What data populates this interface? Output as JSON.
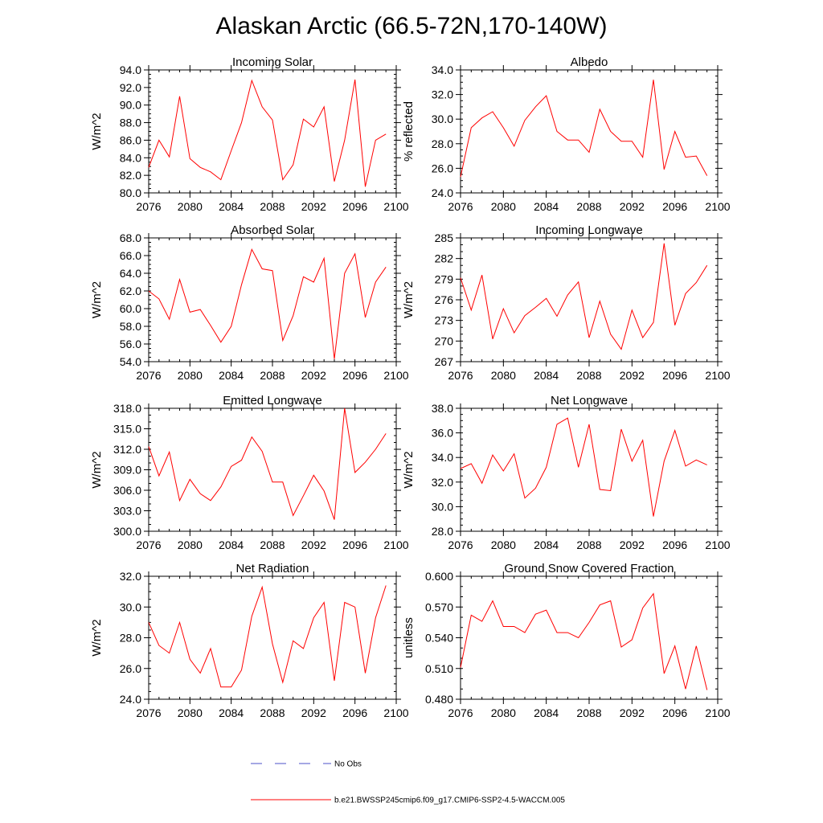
{
  "title": "Alaskan Arctic (66.5-72N,170-140W)",
  "colors": {
    "series": "#ff0000",
    "obs": "#4b50c8",
    "axis": "#000000"
  },
  "legend": {
    "obs_label": "No Obs",
    "model_label": "b.e21.BWSSP245cmip6.f09_g17.CMIP6-SSP2-4.5-WACCM.005"
  },
  "chart_data": [
    {
      "type": "line",
      "title": "Incoming Solar",
      "xlabel": "",
      "ylabel": "W/m^2",
      "xlim": [
        2076,
        2100
      ],
      "ylim": [
        80,
        94
      ],
      "x_ticks": [
        2076,
        2080,
        2084,
        2088,
        2092,
        2096,
        2100
      ],
      "x_tick_labels": [
        "2076",
        "2080",
        "2084",
        "2088",
        "2092",
        "2096",
        "2100"
      ],
      "y_ticks": [
        80,
        82,
        84,
        86,
        88,
        90,
        92,
        94
      ],
      "y_tick_labels": [
        "80.0",
        "82.0",
        "84.0",
        "86.0",
        "88.0",
        "90.0",
        "92.0",
        "94.0"
      ],
      "y_minor_step": 0.5,
      "x": [
        2076,
        2077,
        2078,
        2079,
        2080,
        2081,
        2082,
        2083,
        2084,
        2085,
        2086,
        2087,
        2088,
        2089,
        2090,
        2091,
        2092,
        2093,
        2094,
        2095,
        2096,
        2097,
        2098,
        2099
      ],
      "series": [
        {
          "name": "b.e21.BWSSP245cmip6.f09_g17.CMIP6-SSP2-4.5-WACCM.005",
          "values": [
            82.9,
            86.0,
            84.1,
            91.0,
            83.9,
            82.9,
            82.4,
            81.5,
            84.8,
            88.0,
            92.8,
            89.8,
            88.3,
            81.5,
            83.2,
            88.4,
            87.5,
            89.8,
            81.3,
            86.0,
            92.9,
            80.7,
            86.0,
            86.7
          ]
        }
      ]
    },
    {
      "type": "line",
      "title": "Albedo",
      "xlabel": "",
      "ylabel": "% reflected",
      "xlim": [
        2076,
        2100
      ],
      "ylim": [
        24,
        34
      ],
      "x_ticks": [
        2076,
        2080,
        2084,
        2088,
        2092,
        2096,
        2100
      ],
      "x_tick_labels": [
        "2076",
        "2080",
        "2084",
        "2088",
        "2092",
        "2096",
        "2100"
      ],
      "y_ticks": [
        24,
        26,
        28,
        30,
        32,
        34
      ],
      "y_tick_labels": [
        "24.0",
        "26.0",
        "28.0",
        "30.0",
        "32.0",
        "34.0"
      ],
      "y_minor_step": 0.5,
      "x": [
        2076,
        2077,
        2078,
        2079,
        2080,
        2081,
        2082,
        2083,
        2084,
        2085,
        2086,
        2087,
        2088,
        2089,
        2090,
        2091,
        2092,
        2093,
        2094,
        2095,
        2096,
        2097,
        2098,
        2099
      ],
      "series": [
        {
          "name": "b.e21.BWSSP245cmip6.f09_g17.CMIP6-SSP2-4.5-WACCM.005",
          "values": [
            25.3,
            29.3,
            30.1,
            30.6,
            29.3,
            27.8,
            29.9,
            31.0,
            31.9,
            29.0,
            28.3,
            28.3,
            27.3,
            30.8,
            29.0,
            28.2,
            28.2,
            26.9,
            33.2,
            25.9,
            29.0,
            26.9,
            27.0,
            25.4
          ]
        }
      ]
    },
    {
      "type": "line",
      "title": "Absorbed Solar",
      "xlabel": "",
      "ylabel": "W/m^2",
      "xlim": [
        2076,
        2100
      ],
      "ylim": [
        54,
        68
      ],
      "x_ticks": [
        2076,
        2080,
        2084,
        2088,
        2092,
        2096,
        2100
      ],
      "x_tick_labels": [
        "2076",
        "2080",
        "2084",
        "2088",
        "2092",
        "2096",
        "2100"
      ],
      "y_ticks": [
        54,
        56,
        58,
        60,
        62,
        64,
        66,
        68
      ],
      "y_tick_labels": [
        "54.0",
        "56.0",
        "58.0",
        "60.0",
        "62.0",
        "64.0",
        "66.0",
        "68.0"
      ],
      "y_minor_step": 0.5,
      "x": [
        2076,
        2077,
        2078,
        2079,
        2080,
        2081,
        2082,
        2083,
        2084,
        2085,
        2086,
        2087,
        2088,
        2089,
        2090,
        2091,
        2092,
        2093,
        2094,
        2095,
        2096,
        2097,
        2098,
        2099
      ],
      "series": [
        {
          "name": "b.e21.BWSSP245cmip6.f09_g17.CMIP6-SSP2-4.5-WACCM.005",
          "values": [
            62.0,
            61.1,
            58.8,
            63.3,
            59.6,
            59.9,
            58.1,
            56.2,
            58.0,
            62.7,
            66.7,
            64.5,
            64.3,
            56.4,
            59.2,
            63.6,
            63.0,
            65.7,
            54.3,
            64.0,
            66.2,
            59.0,
            63.0,
            64.7
          ]
        }
      ]
    },
    {
      "type": "line",
      "title": "Incoming Longwave",
      "xlabel": "",
      "ylabel": "W/m^2",
      "xlim": [
        2076,
        2100
      ],
      "ylim": [
        267,
        285
      ],
      "x_ticks": [
        2076,
        2080,
        2084,
        2088,
        2092,
        2096,
        2100
      ],
      "x_tick_labels": [
        "2076",
        "2080",
        "2084",
        "2088",
        "2092",
        "2096",
        "2100"
      ],
      "y_ticks": [
        267,
        270,
        273,
        276,
        279,
        282,
        285
      ],
      "y_tick_labels": [
        "267",
        "270",
        "273",
        "276",
        "279",
        "282",
        "285"
      ],
      "y_minor_step": 1,
      "x": [
        2076,
        2077,
        2078,
        2079,
        2080,
        2081,
        2082,
        2083,
        2084,
        2085,
        2086,
        2087,
        2088,
        2089,
        2090,
        2091,
        2092,
        2093,
        2094,
        2095,
        2096,
        2097,
        2098,
        2099
      ],
      "series": [
        {
          "name": "b.e21.BWSSP245cmip6.f09_g17.CMIP6-SSP2-4.5-WACCM.005",
          "values": [
            279.2,
            274.5,
            279.6,
            270.3,
            274.7,
            271.2,
            273.7,
            274.9,
            276.2,
            273.6,
            276.7,
            278.6,
            270.5,
            275.8,
            271.0,
            268.8,
            274.5,
            270.5,
            272.7,
            284.2,
            272.3,
            276.9,
            278.5,
            281.0
          ]
        }
      ]
    },
    {
      "type": "line",
      "title": "Emitted Longwave",
      "xlabel": "",
      "ylabel": "W/m^2",
      "xlim": [
        2076,
        2100
      ],
      "ylim": [
        300,
        318
      ],
      "x_ticks": [
        2076,
        2080,
        2084,
        2088,
        2092,
        2096,
        2100
      ],
      "x_tick_labels": [
        "2076",
        "2080",
        "2084",
        "2088",
        "2092",
        "2096",
        "2100"
      ],
      "y_ticks": [
        300,
        303,
        306,
        309,
        312,
        315,
        318
      ],
      "y_tick_labels": [
        "300.0",
        "303.0",
        "306.0",
        "309.0",
        "312.0",
        "315.0",
        "318.0"
      ],
      "y_minor_step": 1,
      "x": [
        2076,
        2077,
        2078,
        2079,
        2080,
        2081,
        2082,
        2083,
        2084,
        2085,
        2086,
        2087,
        2088,
        2089,
        2090,
        2091,
        2092,
        2093,
        2094,
        2095,
        2096,
        2097,
        2098,
        2099
      ],
      "series": [
        {
          "name": "b.e21.BWSSP245cmip6.f09_g17.CMIP6-SSP2-4.5-WACCM.005",
          "values": [
            312.4,
            308.1,
            311.6,
            304.5,
            307.6,
            305.5,
            304.5,
            306.5,
            309.5,
            310.4,
            313.8,
            311.7,
            307.2,
            307.2,
            302.3,
            305.2,
            308.2,
            305.9,
            301.7,
            318.0,
            308.6,
            310.1,
            312.0,
            314.3
          ]
        }
      ]
    },
    {
      "type": "line",
      "title": "Net Longwave",
      "xlabel": "",
      "ylabel": "W/m^2",
      "xlim": [
        2076,
        2100
      ],
      "ylim": [
        28,
        38
      ],
      "x_ticks": [
        2076,
        2080,
        2084,
        2088,
        2092,
        2096,
        2100
      ],
      "x_tick_labels": [
        "2076",
        "2080",
        "2084",
        "2088",
        "2092",
        "2096",
        "2100"
      ],
      "y_ticks": [
        28,
        30,
        32,
        34,
        36,
        38
      ],
      "y_tick_labels": [
        "28.0",
        "30.0",
        "32.0",
        "34.0",
        "36.0",
        "38.0"
      ],
      "y_minor_step": 0.5,
      "x": [
        2076,
        2077,
        2078,
        2079,
        2080,
        2081,
        2082,
        2083,
        2084,
        2085,
        2086,
        2087,
        2088,
        2089,
        2090,
        2091,
        2092,
        2093,
        2094,
        2095,
        2096,
        2097,
        2098,
        2099
      ],
      "series": [
        {
          "name": "b.e21.BWSSP245cmip6.f09_g17.CMIP6-SSP2-4.5-WACCM.005",
          "values": [
            33.1,
            33.5,
            31.9,
            34.2,
            32.9,
            34.3,
            30.7,
            31.5,
            33.2,
            36.7,
            37.2,
            33.2,
            36.7,
            31.4,
            31.3,
            36.3,
            33.7,
            35.4,
            29.2,
            33.7,
            36.2,
            33.3,
            33.8,
            33.4
          ]
        }
      ]
    },
    {
      "type": "line",
      "title": "Net Radiation",
      "xlabel": "",
      "ylabel": "W/m^2",
      "xlim": [
        2076,
        2100
      ],
      "ylim": [
        24,
        32
      ],
      "x_ticks": [
        2076,
        2080,
        2084,
        2088,
        2092,
        2096,
        2100
      ],
      "x_tick_labels": [
        "2076",
        "2080",
        "2084",
        "2088",
        "2092",
        "2096",
        "2100"
      ],
      "y_ticks": [
        24,
        26,
        28,
        30,
        32
      ],
      "y_tick_labels": [
        "24.0",
        "26.0",
        "28.0",
        "30.0",
        "32.0"
      ],
      "y_minor_step": 0.5,
      "x": [
        2076,
        2077,
        2078,
        2079,
        2080,
        2081,
        2082,
        2083,
        2084,
        2085,
        2086,
        2087,
        2088,
        2089,
        2090,
        2091,
        2092,
        2093,
        2094,
        2095,
        2096,
        2097,
        2098,
        2099
      ],
      "series": [
        {
          "name": "b.e21.BWSSP245cmip6.f09_g17.CMIP6-SSP2-4.5-WACCM.005",
          "values": [
            29.0,
            27.5,
            27.0,
            29.0,
            26.6,
            25.7,
            27.3,
            24.8,
            24.8,
            25.9,
            29.4,
            31.3,
            27.6,
            25.1,
            27.8,
            27.3,
            29.3,
            30.3,
            25.2,
            30.3,
            30.0,
            25.7,
            29.3,
            31.4
          ]
        }
      ]
    },
    {
      "type": "line",
      "title": "Ground Snow Covered Fraction",
      "xlabel": "",
      "ylabel": "unitless",
      "xlim": [
        2076,
        2100
      ],
      "ylim": [
        0.48,
        0.6
      ],
      "x_ticks": [
        2076,
        2080,
        2084,
        2088,
        2092,
        2096,
        2100
      ],
      "x_tick_labels": [
        "2076",
        "2080",
        "2084",
        "2088",
        "2092",
        "2096",
        "2100"
      ],
      "y_ticks": [
        0.48,
        0.51,
        0.54,
        0.57,
        0.6
      ],
      "y_tick_labels": [
        "0.480",
        "0.510",
        "0.540",
        "0.570",
        "0.600"
      ],
      "y_minor_step": 0.01,
      "x": [
        2076,
        2077,
        2078,
        2079,
        2080,
        2081,
        2082,
        2083,
        2084,
        2085,
        2086,
        2087,
        2088,
        2089,
        2090,
        2091,
        2092,
        2093,
        2094,
        2095,
        2096,
        2097,
        2098,
        2099
      ],
      "series": [
        {
          "name": "b.e21.BWSSP245cmip6.f09_g17.CMIP6-SSP2-4.5-WACCM.005",
          "values": [
            0.511,
            0.562,
            0.556,
            0.576,
            0.551,
            0.551,
            0.545,
            0.563,
            0.567,
            0.545,
            0.545,
            0.54,
            0.555,
            0.572,
            0.576,
            0.531,
            0.538,
            0.569,
            0.583,
            0.505,
            0.532,
            0.49,
            0.532,
            0.489
          ]
        }
      ]
    }
  ]
}
